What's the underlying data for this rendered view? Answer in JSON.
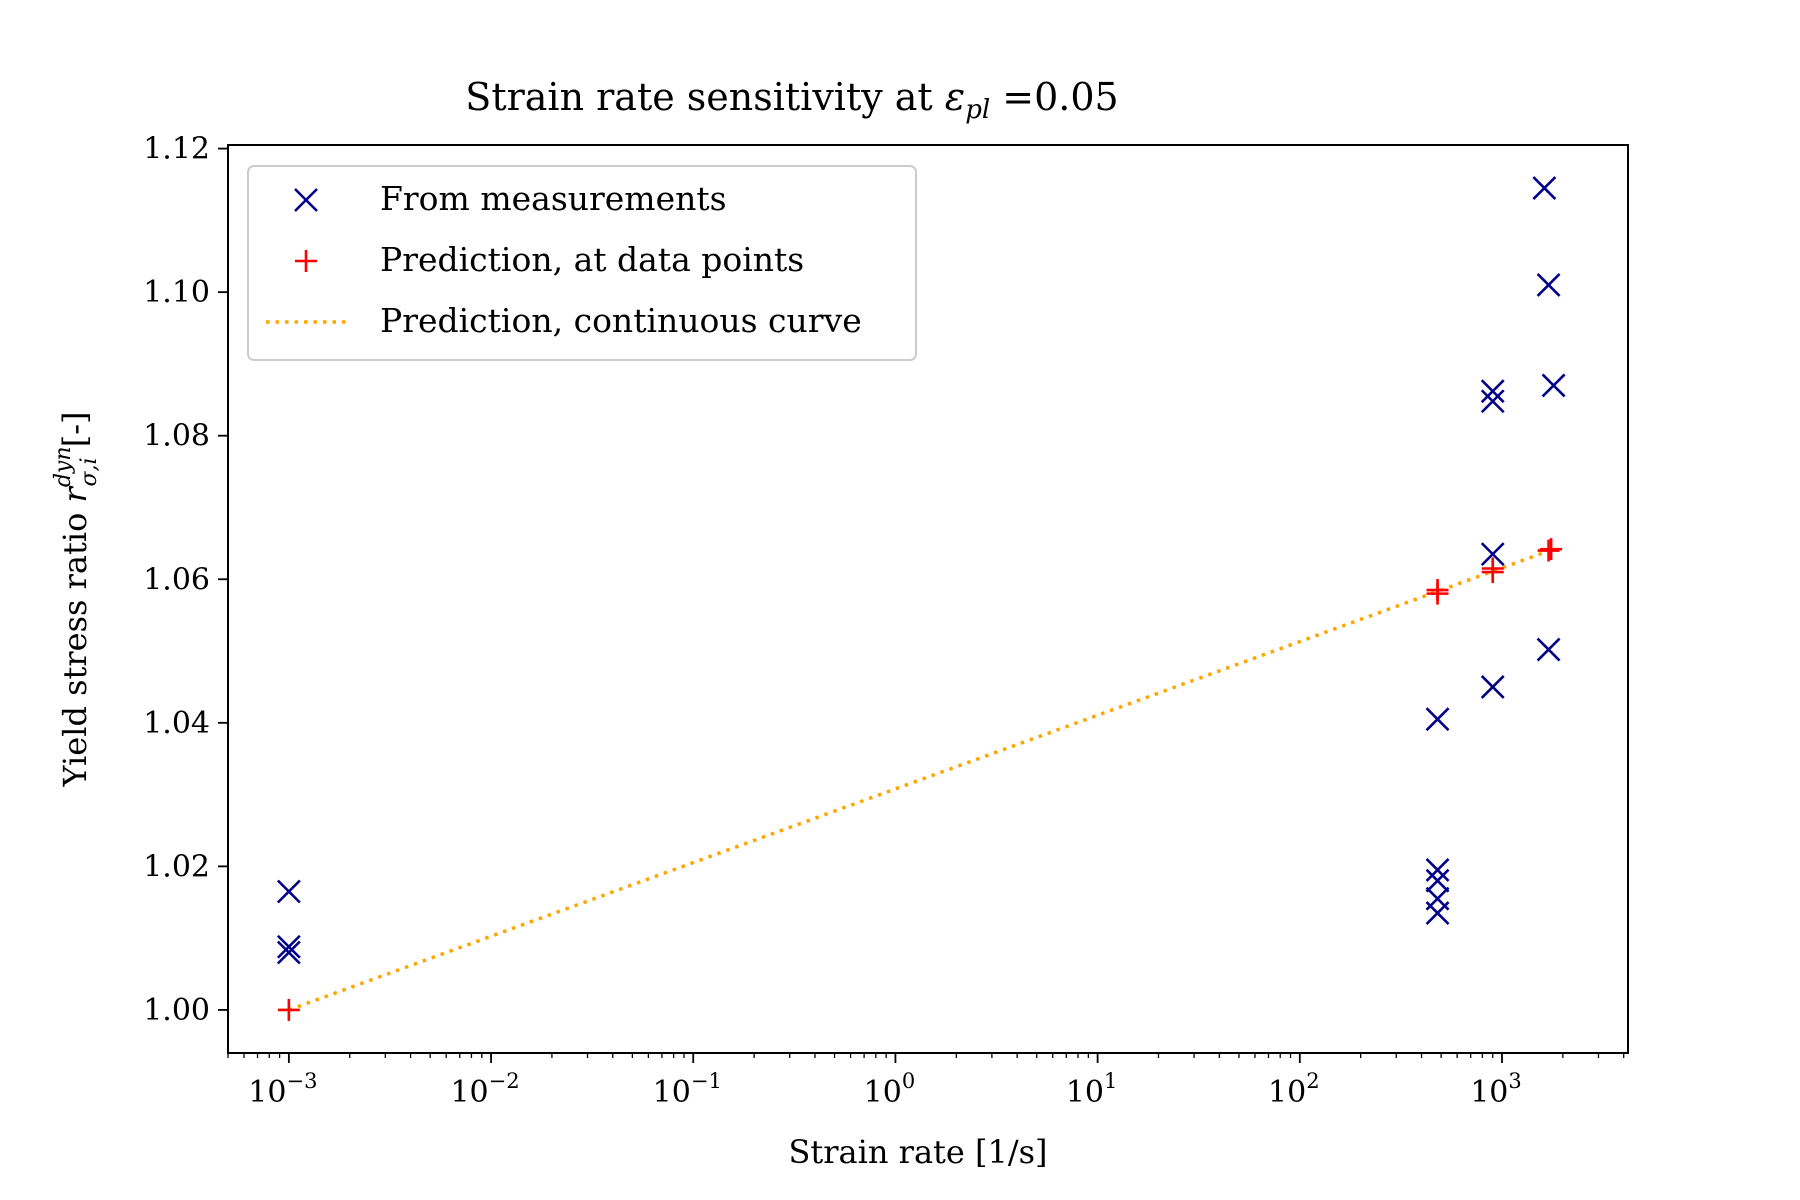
{
  "chart_data": {
    "type": "scatter",
    "title_prefix": "Strain rate sensitivity at ",
    "title_symbol": "ε",
    "title_subscript": "pl",
    "title_suffix": " =0.05",
    "xlabel": "Strain rate [1/s]",
    "ylabel_prefix": "Yield stress ratio ",
    "ylabel_symbol": "r",
    "ylabel_subscript": "σ,i",
    "ylabel_superscript": "dyn",
    "ylabel_suffix": " [-]",
    "xscale": "log",
    "xlim": [
      0.0005,
      4200
    ],
    "ylim": [
      0.994,
      1.1205
    ],
    "x_ticks": [
      {
        "base": "10",
        "exp": "−3",
        "value": 0.001
      },
      {
        "base": "10",
        "exp": "−2",
        "value": 0.01
      },
      {
        "base": "10",
        "exp": "−1",
        "value": 0.1
      },
      {
        "base": "10",
        "exp": "0",
        "value": 1
      },
      {
        "base": "10",
        "exp": "1",
        "value": 10
      },
      {
        "base": "10",
        "exp": "2",
        "value": 100
      },
      {
        "base": "10",
        "exp": "3",
        "value": 1000
      }
    ],
    "y_ticks": [
      "1.00",
      "1.02",
      "1.04",
      "1.06",
      "1.08",
      "1.10",
      "1.12"
    ],
    "grid": false,
    "legend_position": "upper-left",
    "series": [
      {
        "name": "From measurements",
        "marker": "x",
        "color": "#00008b",
        "points": [
          {
            "x": 0.001,
            "y": 1.0165
          },
          {
            "x": 0.001,
            "y": 1.0088
          },
          {
            "x": 0.001,
            "y": 1.008
          },
          {
            "x": 480,
            "y": 1.0405
          },
          {
            "x": 480,
            "y": 1.0195
          },
          {
            "x": 480,
            "y": 1.018
          },
          {
            "x": 480,
            "y": 1.0155
          },
          {
            "x": 480,
            "y": 1.0135
          },
          {
            "x": 900,
            "y": 1.0862
          },
          {
            "x": 900,
            "y": 1.0848
          },
          {
            "x": 900,
            "y": 1.0635
          },
          {
            "x": 900,
            "y": 1.045
          },
          {
            "x": 1620,
            "y": 1.1145
          },
          {
            "x": 1700,
            "y": 1.101
          },
          {
            "x": 1800,
            "y": 1.087
          },
          {
            "x": 1700,
            "y": 1.0502
          }
        ]
      },
      {
        "name": "Prediction, at data points",
        "marker": "+",
        "color": "#ff0000",
        "points": [
          {
            "x": 0.001,
            "y": 1.0
          },
          {
            "x": 480,
            "y": 1.0585
          },
          {
            "x": 480,
            "y": 1.058
          },
          {
            "x": 900,
            "y": 1.0615
          },
          {
            "x": 900,
            "y": 1.061
          },
          {
            "x": 1700,
            "y": 1.064
          },
          {
            "x": 1750,
            "y": 1.0642
          }
        ]
      },
      {
        "name": "Prediction, continuous curve",
        "marker": "dotted-line",
        "color": "#ffa500",
        "points": [
          {
            "x": 0.001,
            "y": 1.0
          },
          {
            "x": 1800,
            "y": 1.0642
          }
        ]
      }
    ]
  }
}
